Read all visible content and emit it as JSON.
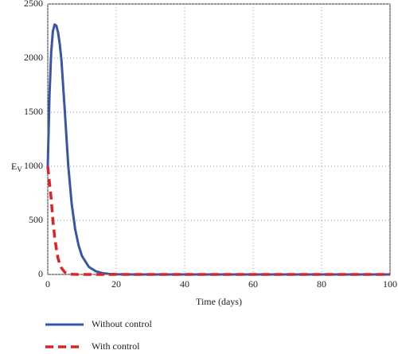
{
  "chart_data": {
    "type": "line",
    "xlabel": "Time (days)",
    "ylabel": "E",
    "ylabel_sub": "V",
    "x": [
      0,
      0.5,
      1,
      1.5,
      2,
      2.5,
      3,
      3.5,
      4,
      5,
      6,
      7,
      8,
      9,
      10,
      12,
      14,
      16,
      18,
      20,
      25,
      30,
      40,
      50,
      60,
      70,
      80,
      90,
      100
    ],
    "series": [
      {
        "name": "Without control",
        "color": "#3a55a8",
        "linestyle": "solid",
        "values": [
          1000,
          1650,
          2050,
          2250,
          2310,
          2300,
          2240,
          2130,
          1980,
          1500,
          1000,
          650,
          420,
          270,
          170,
          70,
          30,
          12,
          5,
          2,
          0,
          0,
          0,
          0,
          0,
          0,
          0,
          0,
          0
        ]
      },
      {
        "name": "With control",
        "color": "#e02127",
        "linestyle": "dashed",
        "values": [
          1000,
          850,
          700,
          500,
          350,
          240,
          150,
          95,
          60,
          20,
          6,
          2,
          0.5,
          0,
          0,
          0,
          0,
          0,
          0,
          0,
          0,
          0,
          0,
          0,
          0,
          0,
          0,
          0,
          0
        ]
      }
    ],
    "xlim": [
      0,
      100
    ],
    "xticks": [
      0,
      20,
      40,
      60,
      80,
      100
    ],
    "ylim": [
      0,
      2500
    ],
    "yticks": [
      0,
      500,
      1000,
      1500,
      2000,
      2500
    ],
    "grid": true,
    "legend": "bottom-left"
  }
}
